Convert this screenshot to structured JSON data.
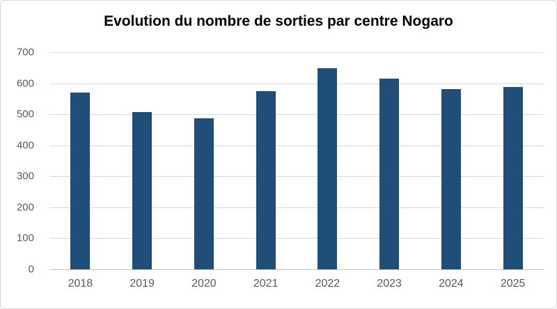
{
  "chart_data": {
    "type": "bar",
    "title": "Evolution du nombre de sorties par centre Nogaro",
    "categories": [
      "2018",
      "2019",
      "2020",
      "2021",
      "2022",
      "2023",
      "2024",
      "2025"
    ],
    "values": [
      570,
      506,
      486,
      574,
      648,
      615,
      582,
      587
    ],
    "xlabel": "",
    "ylabel": "",
    "ylim": [
      0,
      700
    ],
    "yticks": [
      0,
      100,
      200,
      300,
      400,
      500,
      600,
      700
    ],
    "grid": "horizontal",
    "legend": "none",
    "colors": {
      "bar_fill": "#1F4E79",
      "gridline": "#D9D9D9",
      "axis_line": "#C6C6C6",
      "tick_label": "#595959",
      "title": "#000000",
      "background": "#FFFFFF",
      "chart_border": "#D6D6D6"
    }
  }
}
